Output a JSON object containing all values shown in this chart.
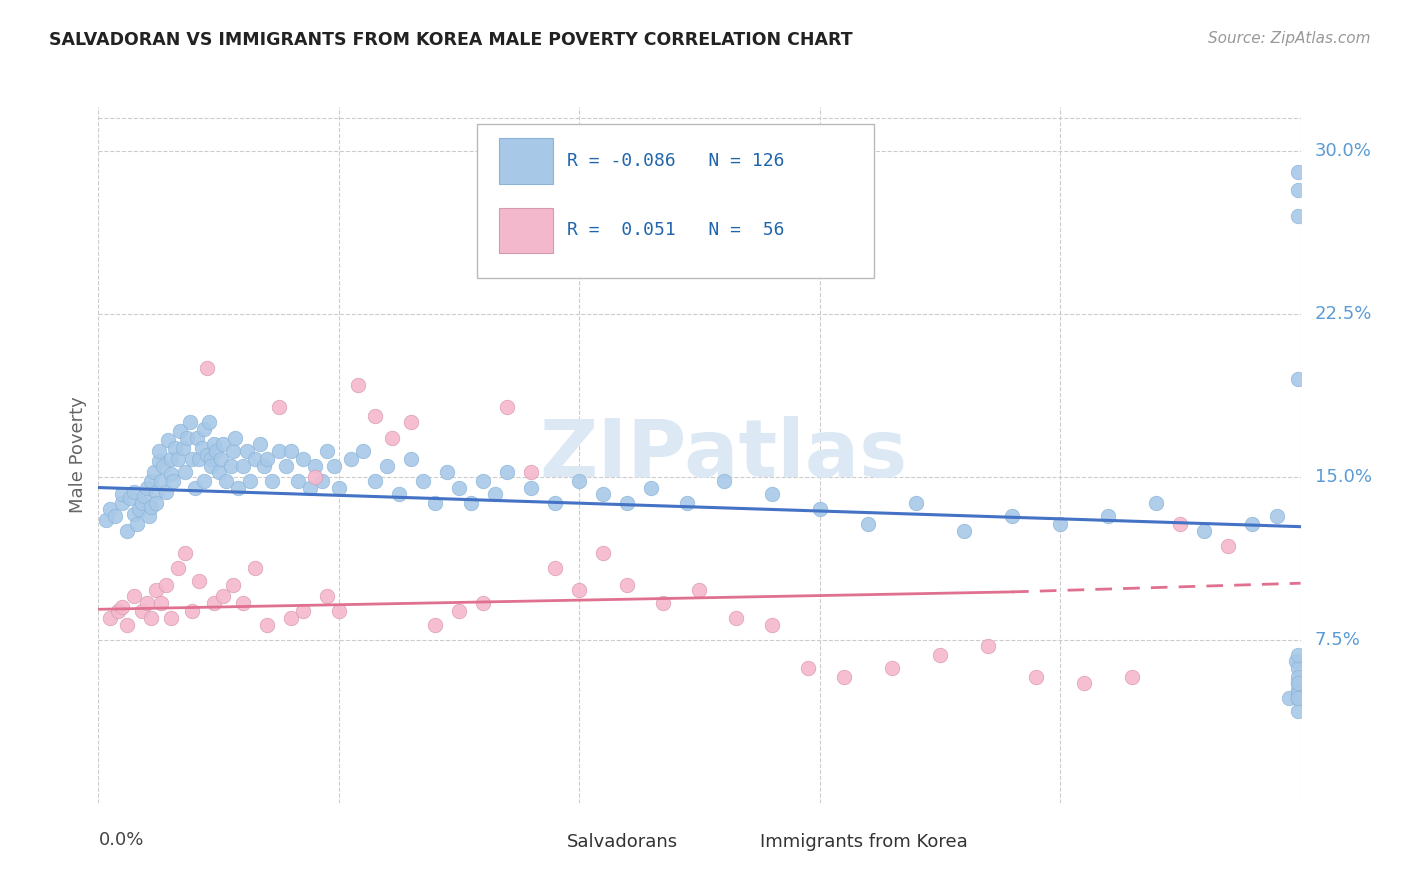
{
  "title": "SALVADORAN VS IMMIGRANTS FROM KOREA MALE POVERTY CORRELATION CHART",
  "source": "Source: ZipAtlas.com",
  "ylabel": "Male Poverty",
  "ytick_vals": [
    0.075,
    0.15,
    0.225,
    0.3
  ],
  "ytick_labels": [
    "7.5%",
    "15.0%",
    "22.5%",
    "30.0%"
  ],
  "xlim": [
    0.0,
    0.5
  ],
  "ylim": [
    0.0,
    0.32
  ],
  "color_blue": "#a8c8e8",
  "color_pink": "#f4b8cc",
  "color_line_blue": "#4472c4",
  "color_line_pink": "#e07090",
  "color_ytick": "#5b9bd5",
  "watermark_text": "ZIPatlas",
  "watermark_color": "#dce9f5",
  "grid_color": "#cccccc",
  "background_color": "#ffffff",
  "legend_r1": "R = -0.086",
  "legend_n1": "N = 126",
  "legend_r2": "R =  0.051",
  "legend_n2": "N =  56",
  "blue_line_x0": 0.0,
  "blue_line_y0": 0.145,
  "blue_line_x1": 0.5,
  "blue_line_y1": 0.127,
  "pink_line_solid_x0": 0.0,
  "pink_line_solid_y0": 0.089,
  "pink_line_solid_x1": 0.38,
  "pink_line_solid_y1": 0.097,
  "pink_line_dash_x0": 0.38,
  "pink_line_dash_y0": 0.097,
  "pink_line_dash_x1": 0.5,
  "pink_line_dash_y1": 0.101,
  "sal_x": [
    0.003,
    0.005,
    0.007,
    0.01,
    0.01,
    0.012,
    0.013,
    0.015,
    0.015,
    0.016,
    0.017,
    0.018,
    0.019,
    0.02,
    0.021,
    0.022,
    0.022,
    0.023,
    0.024,
    0.024,
    0.025,
    0.025,
    0.026,
    0.027,
    0.028,
    0.029,
    0.03,
    0.03,
    0.031,
    0.032,
    0.033,
    0.034,
    0.035,
    0.036,
    0.037,
    0.038,
    0.039,
    0.04,
    0.041,
    0.042,
    0.043,
    0.044,
    0.044,
    0.045,
    0.046,
    0.047,
    0.047,
    0.048,
    0.049,
    0.05,
    0.051,
    0.052,
    0.053,
    0.055,
    0.056,
    0.057,
    0.058,
    0.06,
    0.062,
    0.063,
    0.065,
    0.067,
    0.069,
    0.07,
    0.072,
    0.075,
    0.078,
    0.08,
    0.083,
    0.085,
    0.088,
    0.09,
    0.093,
    0.095,
    0.098,
    0.1,
    0.105,
    0.11,
    0.115,
    0.12,
    0.125,
    0.13,
    0.135,
    0.14,
    0.145,
    0.15,
    0.155,
    0.16,
    0.165,
    0.17,
    0.18,
    0.19,
    0.2,
    0.21,
    0.22,
    0.23,
    0.245,
    0.26,
    0.28,
    0.3,
    0.32,
    0.34,
    0.36,
    0.38,
    0.4,
    0.42,
    0.44,
    0.46,
    0.48,
    0.49,
    0.495,
    0.498,
    0.499,
    0.499,
    0.499,
    0.499,
    0.499,
    0.499,
    0.499,
    0.499,
    0.499,
    0.499,
    0.499,
    0.499,
    0.499,
    0.499
  ],
  "sal_y": [
    0.13,
    0.135,
    0.132,
    0.138,
    0.142,
    0.125,
    0.14,
    0.133,
    0.143,
    0.128,
    0.135,
    0.138,
    0.141,
    0.145,
    0.132,
    0.136,
    0.148,
    0.152,
    0.143,
    0.138,
    0.157,
    0.162,
    0.148,
    0.155,
    0.143,
    0.167,
    0.151,
    0.158,
    0.148,
    0.163,
    0.158,
    0.171,
    0.163,
    0.152,
    0.168,
    0.175,
    0.158,
    0.145,
    0.168,
    0.158,
    0.163,
    0.172,
    0.148,
    0.16,
    0.175,
    0.158,
    0.155,
    0.165,
    0.162,
    0.152,
    0.158,
    0.165,
    0.148,
    0.155,
    0.162,
    0.168,
    0.145,
    0.155,
    0.162,
    0.148,
    0.158,
    0.165,
    0.155,
    0.158,
    0.148,
    0.162,
    0.155,
    0.162,
    0.148,
    0.158,
    0.145,
    0.155,
    0.148,
    0.162,
    0.155,
    0.145,
    0.158,
    0.162,
    0.148,
    0.155,
    0.142,
    0.158,
    0.148,
    0.138,
    0.152,
    0.145,
    0.138,
    0.148,
    0.142,
    0.152,
    0.145,
    0.138,
    0.148,
    0.142,
    0.138,
    0.145,
    0.138,
    0.148,
    0.142,
    0.135,
    0.128,
    0.138,
    0.125,
    0.132,
    0.128,
    0.132,
    0.138,
    0.125,
    0.128,
    0.132,
    0.048,
    0.065,
    0.055,
    0.062,
    0.048,
    0.068,
    0.052,
    0.058,
    0.042,
    0.27,
    0.29,
    0.282,
    0.05,
    0.055,
    0.048,
    0.195
  ],
  "kor_x": [
    0.005,
    0.008,
    0.01,
    0.012,
    0.015,
    0.018,
    0.02,
    0.022,
    0.024,
    0.026,
    0.028,
    0.03,
    0.033,
    0.036,
    0.039,
    0.042,
    0.045,
    0.048,
    0.052,
    0.056,
    0.06,
    0.065,
    0.07,
    0.075,
    0.08,
    0.085,
    0.09,
    0.095,
    0.1,
    0.108,
    0.115,
    0.122,
    0.13,
    0.14,
    0.15,
    0.16,
    0.17,
    0.18,
    0.19,
    0.2,
    0.21,
    0.22,
    0.235,
    0.25,
    0.265,
    0.28,
    0.295,
    0.31,
    0.33,
    0.35,
    0.37,
    0.39,
    0.41,
    0.43,
    0.45,
    0.47
  ],
  "kor_y": [
    0.085,
    0.088,
    0.09,
    0.082,
    0.095,
    0.088,
    0.092,
    0.085,
    0.098,
    0.092,
    0.1,
    0.085,
    0.108,
    0.115,
    0.088,
    0.102,
    0.2,
    0.092,
    0.095,
    0.1,
    0.092,
    0.108,
    0.082,
    0.182,
    0.085,
    0.088,
    0.15,
    0.095,
    0.088,
    0.192,
    0.178,
    0.168,
    0.175,
    0.082,
    0.088,
    0.092,
    0.182,
    0.152,
    0.108,
    0.098,
    0.115,
    0.1,
    0.092,
    0.098,
    0.085,
    0.082,
    0.062,
    0.058,
    0.062,
    0.068,
    0.072,
    0.058,
    0.055,
    0.058,
    0.128,
    0.118
  ]
}
